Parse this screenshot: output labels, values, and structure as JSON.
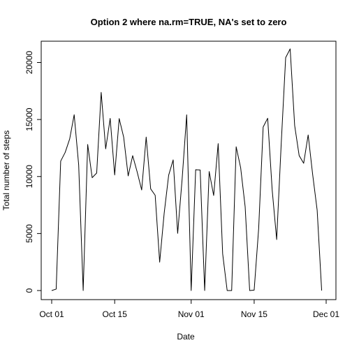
{
  "chart_data": {
    "type": "line",
    "title": "Option 2 where na.rm=TRUE, NA's set to zero",
    "xlabel": "Date",
    "ylabel": "Total number of steps",
    "x_ticks": [
      {
        "date": "2012-10-01",
        "label": "Oct 01"
      },
      {
        "date": "2012-10-15",
        "label": "Oct 15"
      },
      {
        "date": "2012-11-01",
        "label": "Nov 01"
      },
      {
        "date": "2012-11-15",
        "label": "Nov 15"
      },
      {
        "date": "2012-12-01",
        "label": "Dec 01"
      }
    ],
    "y_ticks": [
      0,
      5000,
      10000,
      15000,
      20000
    ],
    "xlim": [
      "2012-10-01",
      "2012-12-01"
    ],
    "ylim": [
      0,
      21194
    ],
    "grid": false,
    "line_color": "#000000",
    "series": [
      {
        "x": [
          "2012-10-01",
          "2012-10-02",
          "2012-10-03",
          "2012-10-04",
          "2012-10-05",
          "2012-10-06",
          "2012-10-07",
          "2012-10-08",
          "2012-10-09",
          "2012-10-10",
          "2012-10-11",
          "2012-10-12",
          "2012-10-13",
          "2012-10-14",
          "2012-10-15",
          "2012-10-16",
          "2012-10-17",
          "2012-10-18",
          "2012-10-19",
          "2012-10-20",
          "2012-10-21",
          "2012-10-22",
          "2012-10-23",
          "2012-10-24",
          "2012-10-25",
          "2012-10-26",
          "2012-10-27",
          "2012-10-28",
          "2012-10-29",
          "2012-10-30",
          "2012-10-31",
          "2012-11-01",
          "2012-11-02",
          "2012-11-03",
          "2012-11-04",
          "2012-11-05",
          "2012-11-06",
          "2012-11-07",
          "2012-11-08",
          "2012-11-09",
          "2012-11-10",
          "2012-11-11",
          "2012-11-12",
          "2012-11-13",
          "2012-11-14",
          "2012-11-15",
          "2012-11-16",
          "2012-11-17",
          "2012-11-18",
          "2012-11-19",
          "2012-11-20",
          "2012-11-21",
          "2012-11-22",
          "2012-11-23",
          "2012-11-24",
          "2012-11-25",
          "2012-11-26",
          "2012-11-27",
          "2012-11-28",
          "2012-11-29",
          "2012-11-30"
        ],
        "y": [
          0,
          126,
          11352,
          12116,
          13294,
          15420,
          11015,
          0,
          12811,
          9900,
          10304,
          17382,
          12426,
          15098,
          10139,
          15084,
          13452,
          10056,
          11829,
          10395,
          8821,
          13460,
          8918,
          8355,
          2492,
          6778,
          10119,
          11458,
          5018,
          9819,
          15414,
          0,
          10600,
          10571,
          0,
          10439,
          8334,
          12883,
          3219,
          0,
          0,
          12608,
          10765,
          7336,
          0,
          41,
          5441,
          14339,
          15110,
          8841,
          4472,
          12787,
          20427,
          21194,
          14478,
          11834,
          11162,
          13646,
          10183,
          7047,
          0
        ]
      }
    ]
  }
}
